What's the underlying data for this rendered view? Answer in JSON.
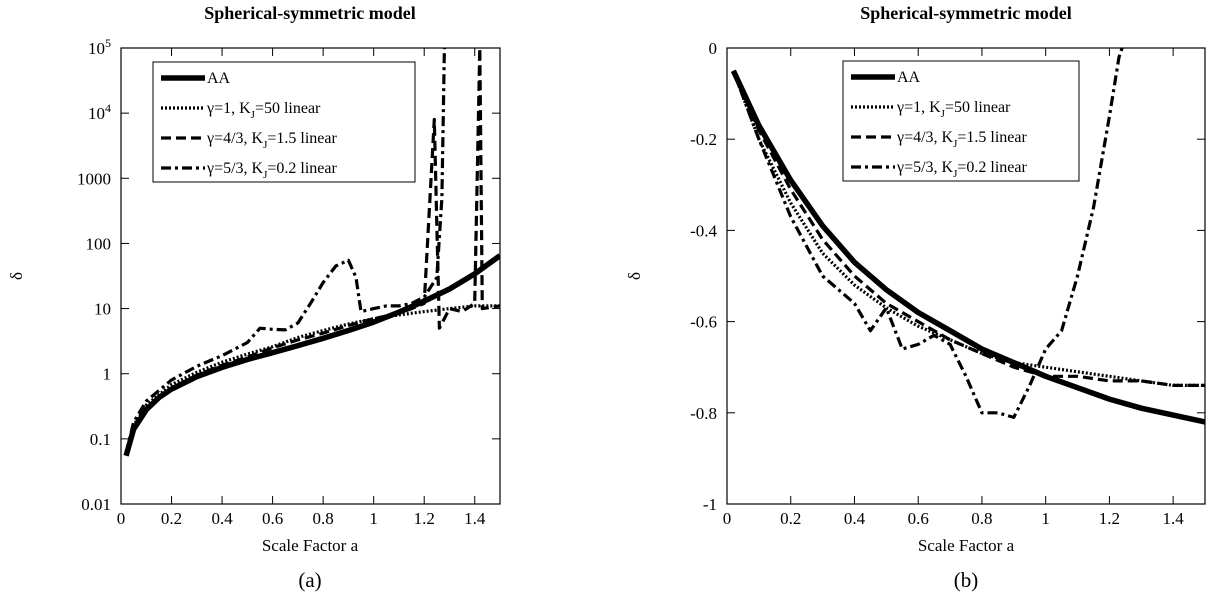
{
  "chart_data": [
    {
      "type": "line",
      "title": "Spherical-symmetric model",
      "xlabel": "Scale Factor  a",
      "ylabel": "δ",
      "caption": "(a)",
      "yscale": "log",
      "xlim": [
        0,
        1.5
      ],
      "ylim": [
        0.01,
        100000
      ],
      "x_ticks": [
        "0",
        "0.2",
        "0.4",
        "0.6",
        "0.8",
        "1",
        "1.2",
        "1.4"
      ],
      "y_ticks": [
        "0.01",
        "0.1",
        "1",
        "10",
        "100",
        "1000",
        "10⁴",
        "10⁵"
      ],
      "legend": {
        "position": "top-left",
        "entries": [
          {
            "label": "AA",
            "style": "solid"
          },
          {
            "label": "γ=1, K_J=50 linear",
            "style": "dotted"
          },
          {
            "label": "γ=4/3, K_J=1.5 linear",
            "style": "dashed"
          },
          {
            "label": "γ=5/3, K_J=0.2 linear",
            "style": "dash-dot"
          }
        ]
      },
      "series": [
        {
          "name": "AA",
          "style": "solid",
          "x": [
            0.02,
            0.05,
            0.1,
            0.15,
            0.2,
            0.3,
            0.4,
            0.5,
            0.6,
            0.7,
            0.8,
            0.9,
            1.0,
            1.1,
            1.2,
            1.3,
            1.4,
            1.5
          ],
          "y": [
            0.055,
            0.14,
            0.28,
            0.43,
            0.58,
            0.9,
            1.25,
            1.65,
            2.1,
            2.7,
            3.5,
            4.6,
            6.2,
            8.8,
            13,
            20,
            34,
            65
          ]
        },
        {
          "name": "γ=1, K_J=50 linear",
          "style": "dotted",
          "x": [
            0.02,
            0.05,
            0.1,
            0.2,
            0.3,
            0.4,
            0.5,
            0.6,
            0.7,
            0.8,
            0.9,
            1.0,
            1.1,
            1.2,
            1.3,
            1.4,
            1.5
          ],
          "y": [
            0.06,
            0.16,
            0.33,
            0.68,
            1.05,
            1.5,
            2.0,
            2.6,
            3.6,
            4.6,
            5.8,
            7.0,
            8.0,
            9.0,
            10,
            11,
            11
          ]
        },
        {
          "name": "γ=4/3, K_J=1.5 linear",
          "style": "dashed",
          "x": [
            0.02,
            0.05,
            0.1,
            0.2,
            0.3,
            0.4,
            0.5,
            0.6,
            0.7,
            0.8,
            0.9,
            1.0,
            1.1,
            1.15,
            1.2,
            1.24,
            1.25,
            1.26,
            1.3,
            1.35,
            1.4,
            1.42,
            1.43,
            1.5
          ],
          "y": [
            0.06,
            0.15,
            0.3,
            0.6,
            0.95,
            1.35,
            1.8,
            2.5,
            3.3,
            4.2,
            5.5,
            7.0,
            8.5,
            10,
            12,
            8000,
            200,
            5,
            10,
            9,
            12,
            100000,
            10,
            11
          ]
        },
        {
          "name": "γ=5/3, K_J=0.2 linear",
          "style": "dash-dot",
          "x": [
            0.02,
            0.05,
            0.1,
            0.2,
            0.3,
            0.4,
            0.5,
            0.55,
            0.6,
            0.65,
            0.7,
            0.75,
            0.8,
            0.85,
            0.9,
            0.93,
            0.95,
            1.0,
            1.05,
            1.1,
            1.15,
            1.2,
            1.25,
            1.27,
            1.28
          ],
          "y": [
            0.06,
            0.18,
            0.38,
            0.8,
            1.3,
            1.9,
            3.0,
            5.0,
            4.8,
            4.7,
            6.0,
            12,
            25,
            45,
            55,
            30,
            9,
            10,
            11,
            11,
            12,
            15,
            30,
            500,
            100000
          ]
        }
      ]
    },
    {
      "type": "line",
      "title": "Spherical-symmetric model",
      "xlabel": "Scale Factor  a",
      "ylabel": "δ",
      "caption": "(b)",
      "xlim": [
        0,
        1.5
      ],
      "ylim": [
        -1,
        0
      ],
      "x_ticks": [
        "0",
        "0.2",
        "0.4",
        "0.6",
        "0.8",
        "1",
        "1.2",
        "1.4"
      ],
      "y_ticks": [
        "-1",
        "-0.8",
        "-0.6",
        "-0.4",
        "-0.2",
        "0"
      ],
      "legend": {
        "position": "top-right",
        "entries": [
          {
            "label": "AA",
            "style": "solid"
          },
          {
            "label": "γ=1, K_J=50 linear",
            "style": "dotted"
          },
          {
            "label": "γ=4/3, K_J=1.5 linear",
            "style": "dashed"
          },
          {
            "label": "γ=5/3, K_J=0.2 linear",
            "style": "dash-dot"
          }
        ]
      },
      "series": [
        {
          "name": "AA",
          "style": "solid",
          "x": [
            0.02,
            0.1,
            0.2,
            0.3,
            0.4,
            0.5,
            0.6,
            0.7,
            0.8,
            0.9,
            1.0,
            1.1,
            1.2,
            1.3,
            1.4,
            1.5
          ],
          "y": [
            -0.05,
            -0.17,
            -0.29,
            -0.39,
            -0.47,
            -0.53,
            -0.58,
            -0.62,
            -0.66,
            -0.69,
            -0.72,
            -0.745,
            -0.77,
            -0.79,
            -0.805,
            -0.82
          ]
        },
        {
          "name": "γ=1, K_J=50 linear",
          "style": "dotted",
          "x": [
            0.02,
            0.1,
            0.2,
            0.3,
            0.4,
            0.5,
            0.6,
            0.7,
            0.8,
            0.9,
            1.0,
            1.1,
            1.2,
            1.3,
            1.4,
            1.5
          ],
          "y": [
            -0.05,
            -0.2,
            -0.34,
            -0.45,
            -0.52,
            -0.57,
            -0.61,
            -0.64,
            -0.67,
            -0.69,
            -0.7,
            -0.71,
            -0.72,
            -0.73,
            -0.74,
            -0.74
          ]
        },
        {
          "name": "γ=4/3, K_J=1.5 linear",
          "style": "dashed",
          "x": [
            0.02,
            0.1,
            0.2,
            0.3,
            0.4,
            0.5,
            0.6,
            0.7,
            0.8,
            0.9,
            1.0,
            1.1,
            1.2,
            1.3,
            1.4,
            1.5
          ],
          "y": [
            -0.05,
            -0.18,
            -0.31,
            -0.42,
            -0.5,
            -0.56,
            -0.6,
            -0.64,
            -0.67,
            -0.7,
            -0.72,
            -0.72,
            -0.73,
            -0.73,
            -0.74,
            -0.74
          ]
        },
        {
          "name": "γ=5/3, K_J=0.2 linear",
          "style": "dash-dot",
          "x": [
            0.02,
            0.1,
            0.2,
            0.3,
            0.4,
            0.45,
            0.5,
            0.55,
            0.6,
            0.65,
            0.7,
            0.75,
            0.8,
            0.85,
            0.9,
            0.95,
            1.0,
            1.05,
            1.1,
            1.15,
            1.2,
            1.23,
            1.24
          ],
          "y": [
            -0.05,
            -0.2,
            -0.37,
            -0.5,
            -0.56,
            -0.62,
            -0.57,
            -0.66,
            -0.65,
            -0.63,
            -0.65,
            -0.72,
            -0.8,
            -0.8,
            -0.81,
            -0.74,
            -0.66,
            -0.62,
            -0.5,
            -0.35,
            -0.15,
            -0.02,
            0
          ]
        }
      ]
    }
  ]
}
